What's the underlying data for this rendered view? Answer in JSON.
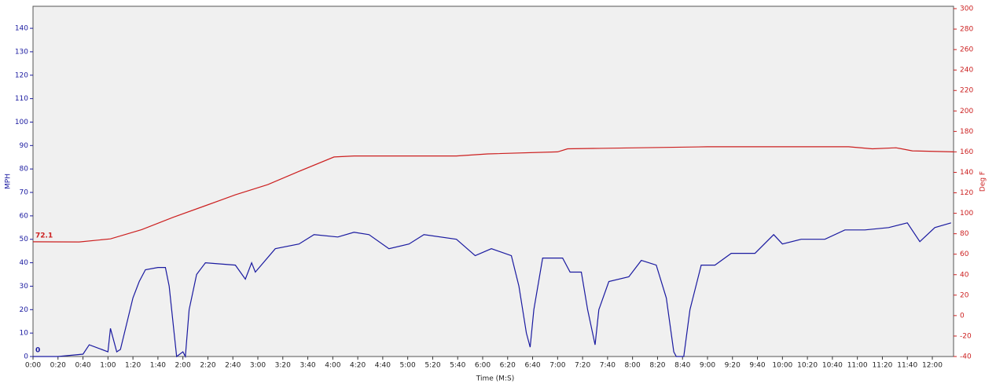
{
  "chart_data": {
    "type": "line",
    "x_label": "Time (M:S)",
    "y_label": "MPH",
    "y2_label": "Deg F",
    "xlim": [
      0,
      737
    ],
    "ylim": [
      0,
      149.4
    ],
    "y2lim": [
      -40,
      302.3
    ],
    "xticks": [
      {
        "value": 0,
        "label": "0:00"
      },
      {
        "value": 20,
        "label": "0:20"
      },
      {
        "value": 40,
        "label": "0:40"
      },
      {
        "value": 60,
        "label": "1:00"
      },
      {
        "value": 80,
        "label": "1:20"
      },
      {
        "value": 100,
        "label": "1:40"
      },
      {
        "value": 120,
        "label": "2:00"
      },
      {
        "value": 140,
        "label": "2:20"
      },
      {
        "value": 160,
        "label": "2:40"
      },
      {
        "value": 180,
        "label": "3:00"
      },
      {
        "value": 200,
        "label": "3:20"
      },
      {
        "value": 220,
        "label": "3:40"
      },
      {
        "value": 240,
        "label": "4:00"
      },
      {
        "value": 260,
        "label": "4:20"
      },
      {
        "value": 280,
        "label": "4:40"
      },
      {
        "value": 300,
        "label": "5:00"
      },
      {
        "value": 320,
        "label": "5:20"
      },
      {
        "value": 340,
        "label": "5:40"
      },
      {
        "value": 360,
        "label": "6:00"
      },
      {
        "value": 380,
        "label": "6:20"
      },
      {
        "value": 400,
        "label": "6:40"
      },
      {
        "value": 420,
        "label": "7:00"
      },
      {
        "value": 440,
        "label": "7:20"
      },
      {
        "value": 460,
        "label": "7:40"
      },
      {
        "value": 480,
        "label": "8:00"
      },
      {
        "value": 500,
        "label": "8:20"
      },
      {
        "value": 520,
        "label": "8:40"
      },
      {
        "value": 540,
        "label": "9:00"
      },
      {
        "value": 560,
        "label": "9:20"
      },
      {
        "value": 580,
        "label": "9:40"
      },
      {
        "value": 600,
        "label": "10:00"
      },
      {
        "value": 620,
        "label": "10:20"
      },
      {
        "value": 640,
        "label": "10:40"
      },
      {
        "value": 660,
        "label": "11:00"
      },
      {
        "value": 680,
        "label": "11:20"
      },
      {
        "value": 700,
        "label": "11:40"
      },
      {
        "value": 720,
        "label": "12:00"
      }
    ],
    "yticks": [
      0,
      10,
      20,
      30,
      40,
      50,
      60,
      70,
      80,
      90,
      100,
      110,
      120,
      130,
      140
    ],
    "y2ticks": [
      -40,
      -20,
      0,
      20,
      40,
      60,
      80,
      100,
      120,
      140,
      160,
      180,
      200,
      220,
      240,
      260,
      280,
      300
    ],
    "y_color": "#1a1aa0",
    "y2_color": "#cc1f1f",
    "series": [
      {
        "color": "#1a1aa0",
        "axis": "y",
        "x": [
          0,
          10,
          20,
          30,
          40,
          45,
          55,
          60,
          62,
          67,
          70,
          80,
          85,
          90,
          100,
          106,
          109,
          113,
          115,
          120,
          122,
          125,
          131,
          138,
          162,
          170,
          175,
          178,
          194,
          213,
          225,
          244,
          257,
          269,
          285,
          301,
          313,
          339,
          354,
          367,
          383,
          389,
          395,
          398,
          401,
          408,
          424,
          430,
          439,
          444,
          450,
          453,
          461,
          477,
          487,
          499,
          507,
          513,
          515,
          521,
          526,
          535,
          546,
          559,
          578,
          593,
          600,
          615,
          634,
          650,
          666,
          685,
          700,
          710,
          722,
          735
        ],
        "values": [
          0,
          0,
          0,
          0.5,
          1,
          5,
          3,
          2,
          12,
          2,
          3,
          25,
          32,
          37,
          38,
          38,
          30,
          10,
          0,
          2,
          0,
          20,
          35,
          40,
          39,
          33,
          40,
          36,
          46,
          48,
          52,
          51,
          53,
          52,
          46,
          48,
          52,
          50,
          43,
          46,
          43,
          30,
          10,
          4,
          20,
          42,
          42,
          36,
          36,
          20,
          5,
          20,
          32,
          34,
          41,
          39,
          25,
          2,
          0,
          0,
          20,
          39,
          39,
          44,
          44,
          52,
          48,
          50,
          50,
          54,
          54,
          55,
          57,
          49,
          55,
          57
        ]
      },
      {
        "color": "#cc1f1f",
        "axis": "y2",
        "x": [
          0,
          37,
          62,
          87,
          112,
          137,
          162,
          188,
          213,
          241,
          257,
          339,
          364,
          420,
          428,
          540,
          603,
          653,
          672,
          691,
          704,
          737
        ],
        "values": [
          72.1,
          72,
          75,
          84,
          96,
          107,
          118,
          128,
          141,
          155,
          156,
          156,
          158,
          160,
          163,
          165,
          165,
          165,
          163,
          164,
          161,
          160
        ]
      }
    ],
    "annotations": [
      {
        "text": "72.1",
        "color": "#cc1f1f"
      },
      {
        "text": "0",
        "color": "#1a1aa0"
      }
    ]
  }
}
